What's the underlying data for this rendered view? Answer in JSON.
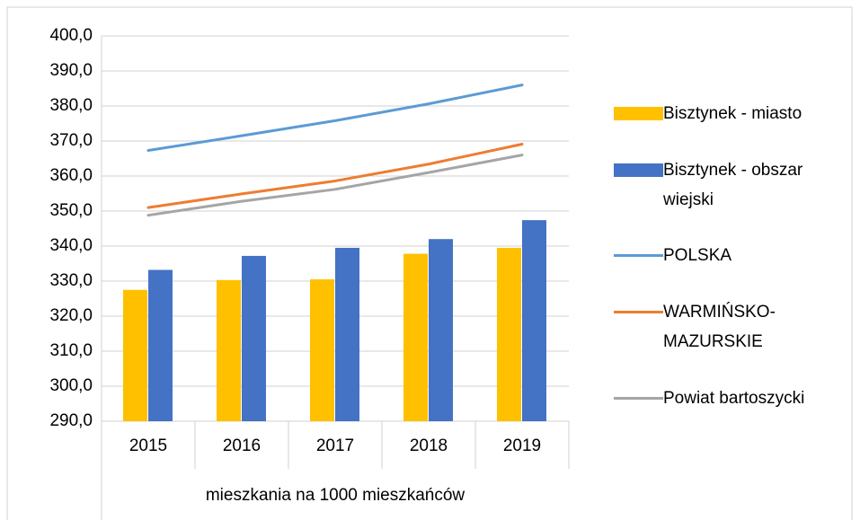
{
  "chart_data": {
    "type": "combo",
    "x_title": "mieszkania na 1000 mieszkańców",
    "categories": [
      "2015",
      "2016",
      "2017",
      "2018",
      "2019"
    ],
    "series": [
      {
        "name": "Bisztynek - miasto",
        "kind": "bar",
        "color": "#ffc000",
        "values": [
          327.5,
          330.3,
          330.5,
          337.8,
          339.5
        ]
      },
      {
        "name": "Bisztynek - obszar wiejski",
        "kind": "bar",
        "color": "#4472c4",
        "values": [
          333.2,
          337.2,
          339.5,
          342.0,
          347.4
        ]
      },
      {
        "name": "POLSKA",
        "kind": "line",
        "color": "#5b9bd5",
        "values": [
          367.3,
          371.5,
          375.8,
          380.6,
          386.0
        ]
      },
      {
        "name": "WARMIŃSKO-MAZURSKIE",
        "kind": "line",
        "color": "#ed7d31",
        "values": [
          351.0,
          354.9,
          358.6,
          363.4,
          369.1
        ]
      },
      {
        "name": "Powiat bartoszycki",
        "kind": "line",
        "color": "#a5a5a5",
        "values": [
          348.8,
          352.8,
          356.2,
          361.0,
          366.0
        ]
      }
    ],
    "ylim": [
      290,
      400
    ],
    "yticks": [
      {
        "value": 290,
        "label": "290,0"
      },
      {
        "value": 300,
        "label": "300,0"
      },
      {
        "value": 310,
        "label": "310,0"
      },
      {
        "value": 320,
        "label": "320,0"
      },
      {
        "value": 330,
        "label": "330,0"
      },
      {
        "value": 340,
        "label": "340,0"
      },
      {
        "value": 350,
        "label": "350,0"
      },
      {
        "value": 360,
        "label": "360,0"
      },
      {
        "value": 370,
        "label": "370,0"
      },
      {
        "value": 380,
        "label": "380,0"
      },
      {
        "value": 390,
        "label": "390,0"
      },
      {
        "value": 400,
        "label": "400,0"
      }
    ],
    "grid": true,
    "legend": "right"
  }
}
